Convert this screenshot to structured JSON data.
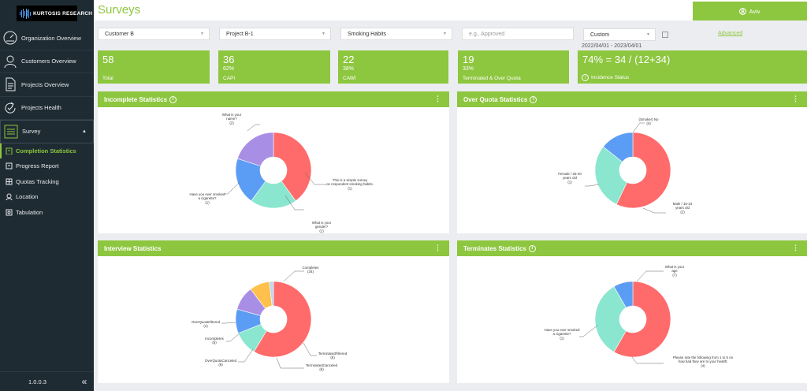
{
  "sidebar": {
    "logo_text": "KURTOSIS RESEARCH",
    "items": [
      {
        "label": "Organization Overview",
        "icon": "gauge-icon"
      },
      {
        "label": "Customers Overview",
        "icon": "user-icon"
      },
      {
        "label": "Projects Overview",
        "icon": "document-icon"
      },
      {
        "label": "Projects Health",
        "icon": "refresh-icon"
      },
      {
        "label": "Survey",
        "icon": "list-icon"
      }
    ],
    "survey_items": [
      {
        "label": "Completion Statistics",
        "icon": "clipboard-icon"
      },
      {
        "label": "Progress Report",
        "icon": "report-icon"
      },
      {
        "label": "Quotas Tracking",
        "icon": "quota-icon"
      },
      {
        "label": "Location",
        "icon": "location-icon"
      },
      {
        "label": "Tabulation",
        "icon": "table-icon"
      }
    ],
    "version": "1.0.0.3",
    "collapse_glyph": "«"
  },
  "header": {
    "title": "Surveys",
    "user": "Aviv"
  },
  "filters": {
    "customer": "Customer B",
    "project": "Project B-1",
    "survey": "Smoking Habits",
    "status_placeholder": "e.g., Approved",
    "date_mode": "Custom",
    "date_range": "2022/04/01 - 2023/04/01",
    "advanced": "Advanced"
  },
  "stats": [
    {
      "value": "58",
      "pct": "",
      "label": "Total"
    },
    {
      "value": "36",
      "pct": "62%",
      "label": "CAPI"
    },
    {
      "value": "22",
      "pct": "38%",
      "label": "CAWI"
    },
    {
      "value": "19",
      "pct": "33%",
      "label": "Terminated & Over Quota"
    },
    {
      "value": "74% = 34 / (12+34)",
      "pct": "",
      "label": "Incidence Status"
    }
  ],
  "colors": {
    "brand": "#8dc63f",
    "sidebar": "#1f2b33",
    "slice_red": "#ff6b6b",
    "slice_teal": "#8ae6cf",
    "slice_blue": "#5b9cf5",
    "slice_purple": "#a98ee6",
    "slice_yellow": "#ffc04d",
    "slice_lightblue": "#b8d8f5"
  },
  "panels": {
    "incomplete": {
      "title": "Incomplete Statistics",
      "menu": "⋮"
    },
    "overquota": {
      "title": "Over Quota Statistics",
      "menu": "⋮"
    },
    "interview": {
      "title": "Interview Statistics",
      "menu": "⋮"
    },
    "terminates": {
      "title": "Terminates Statistics",
      "menu": "⋮"
    }
  },
  "chart_data": [
    {
      "type": "pie",
      "title": "Incomplete Statistics",
      "slices": [
        {
          "label": "What is your name?",
          "value": 2
        },
        {
          "label": "This is a simple survey on respondent smoking habits.",
          "value": 1
        },
        {
          "label": "What is your gender?",
          "value": 1
        },
        {
          "label": "Have you ever smoked a cigarette?",
          "value": 1
        }
      ]
    },
    {
      "type": "pie",
      "title": "Over Quota Statistics",
      "slices": [
        {
          "label": "(Smoker) No",
          "value": 4
        },
        {
          "label": "Male / 16-24 years old",
          "value": 2
        },
        {
          "label": "Female / 25-40 years old",
          "value": 1
        }
      ]
    },
    {
      "type": "pie",
      "title": "Interview Statistics",
      "slices": [
        {
          "label": "Completes",
          "value": 34
        },
        {
          "label": "TerminatedFiltered",
          "value": 6
        },
        {
          "label": "TerminatedCanceled",
          "value": 6
        },
        {
          "label": "OverQuotaCanceled",
          "value": 6
        },
        {
          "label": "Incompletes",
          "value": 5
        },
        {
          "label": "OverQuotaFiltered",
          "value": 1
        }
      ]
    },
    {
      "type": "pie",
      "title": "Terminates Statistics",
      "slices": [
        {
          "label": "What is your age",
          "value": 7
        },
        {
          "label": "Please rate the following from 1 to 5 on how bad they are to your health:",
          "value": 4
        },
        {
          "label": "Have you ever smoked a cigarette?",
          "value": 1
        }
      ]
    }
  ]
}
